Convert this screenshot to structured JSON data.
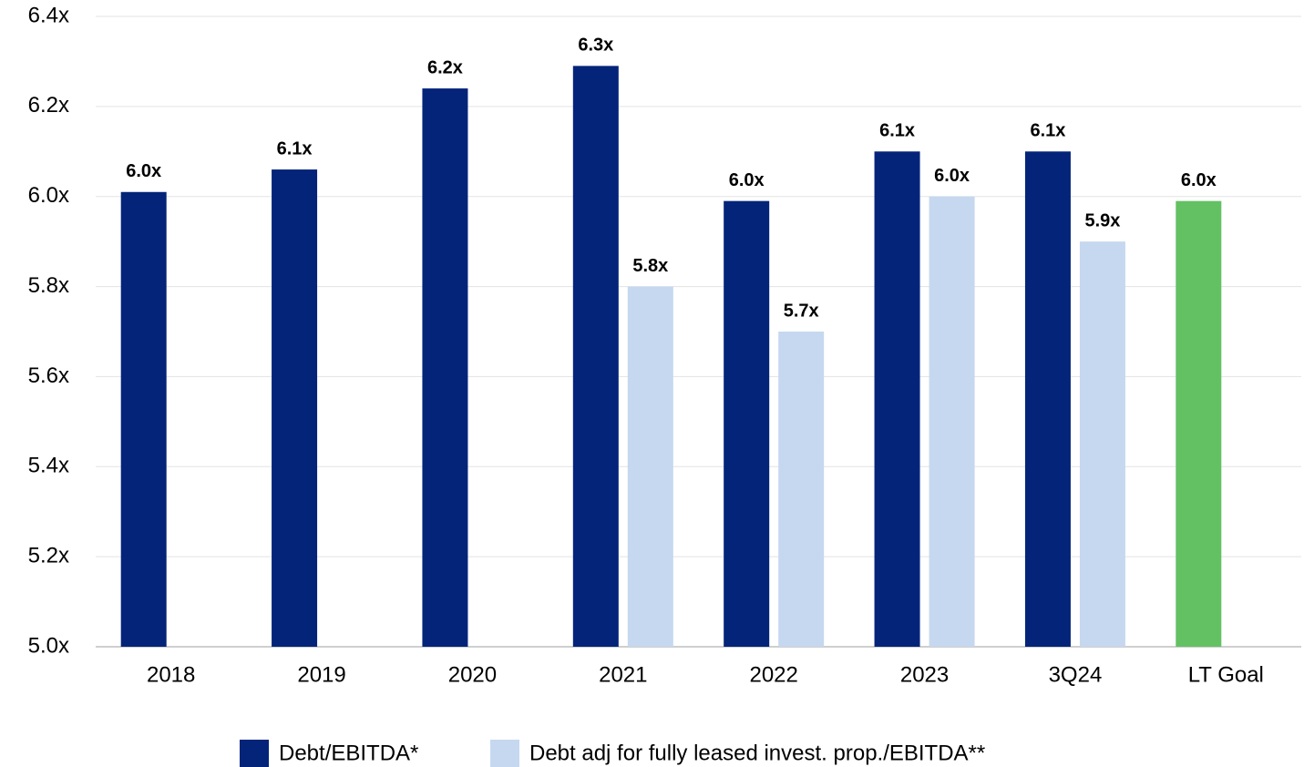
{
  "chart_data": {
    "type": "bar",
    "categories": [
      "2018",
      "2019",
      "2020",
      "2021",
      "2022",
      "2023",
      "3Q24",
      "LT Goal"
    ],
    "series": [
      {
        "name": "Debt/EBITDA*",
        "color": "#032479",
        "colors": [
          null,
          null,
          null,
          null,
          null,
          null,
          null,
          "#63c163"
        ],
        "values": [
          6.01,
          6.06,
          6.24,
          6.29,
          5.99,
          6.1,
          6.1,
          5.99
        ],
        "value_labels": [
          "6.0x",
          "6.1x",
          "6.2x",
          "6.3x",
          "6.0x",
          "6.1x",
          "6.1x",
          "6.0x"
        ]
      },
      {
        "name": "Debt adj for fully leased invest. prop./EBITDA**",
        "color": "#c5d8ef",
        "values": [
          null,
          null,
          null,
          5.8,
          5.7,
          6.0,
          5.9,
          null
        ],
        "value_labels": [
          null,
          null,
          null,
          "5.8x",
          "5.7x",
          "6.0x",
          "5.9x",
          null
        ]
      }
    ],
    "ylim": [
      5.0,
      6.4
    ],
    "yticks": [
      {
        "value": 5.0,
        "label": "5.0x"
      },
      {
        "value": 5.2,
        "label": "5.2x"
      },
      {
        "value": 5.4,
        "label": "5.4x"
      },
      {
        "value": 5.6,
        "label": "5.6x"
      },
      {
        "value": 5.8,
        "label": "5.8x"
      },
      {
        "value": 6.0,
        "label": "6.0x"
      },
      {
        "value": 6.2,
        "label": "6.2x"
      },
      {
        "value": 6.4,
        "label": "6.4x"
      }
    ],
    "grid": true,
    "legend": "bottom"
  }
}
